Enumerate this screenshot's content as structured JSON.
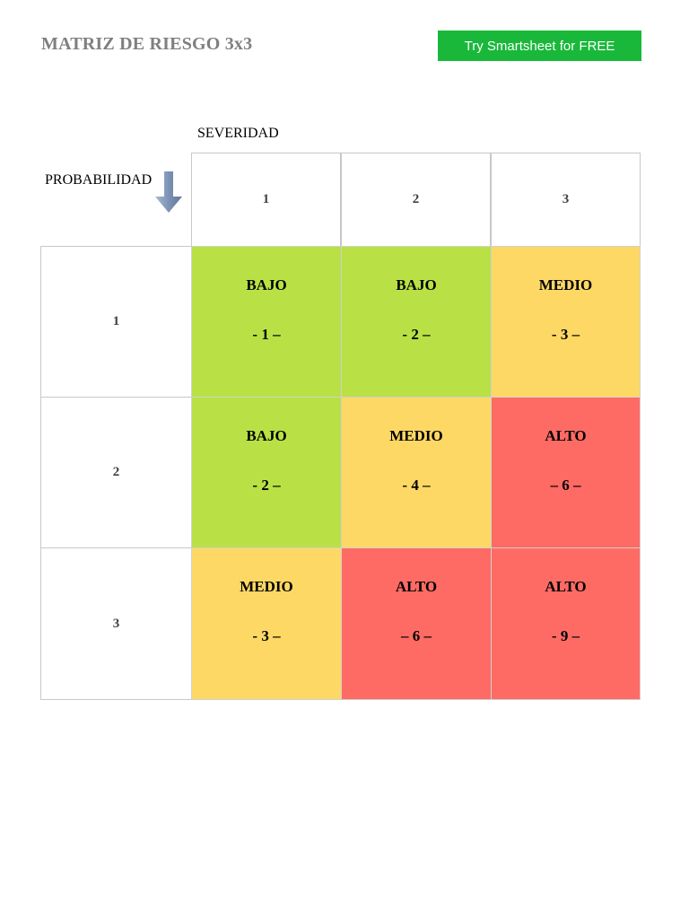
{
  "header": {
    "title": "MATRIZ DE RIESGO 3x3",
    "cta_label": "Try Smartsheet for FREE"
  },
  "axes": {
    "severity_label": "SEVERIDAD",
    "probability_label": "PROBABILIDAD",
    "severity_levels": [
      "1",
      "2",
      "3"
    ],
    "probability_levels": [
      "1",
      "2",
      "3"
    ]
  },
  "colors": {
    "bajo": "#b9e145",
    "medio": "#fed865",
    "alto": "#fe6b64",
    "cta": "#19b83a",
    "title": "#7f7f7f"
  },
  "matrix": {
    "rows": [
      [
        {
          "level": "BAJO",
          "score": "- 1 –"
        },
        {
          "level": "BAJO",
          "score": "- 2 –"
        },
        {
          "level": "MEDIO",
          "score": "- 3 –"
        }
      ],
      [
        {
          "level": "BAJO",
          "score": "- 2 –"
        },
        {
          "level": "MEDIO",
          "score": "- 4 –"
        },
        {
          "level": "ALTO",
          "score": "– 6 –"
        }
      ],
      [
        {
          "level": "MEDIO",
          "score": "- 3 –"
        },
        {
          "level": "ALTO",
          "score": "– 6 –"
        },
        {
          "level": "ALTO",
          "score": "- 9 –"
        }
      ]
    ]
  }
}
